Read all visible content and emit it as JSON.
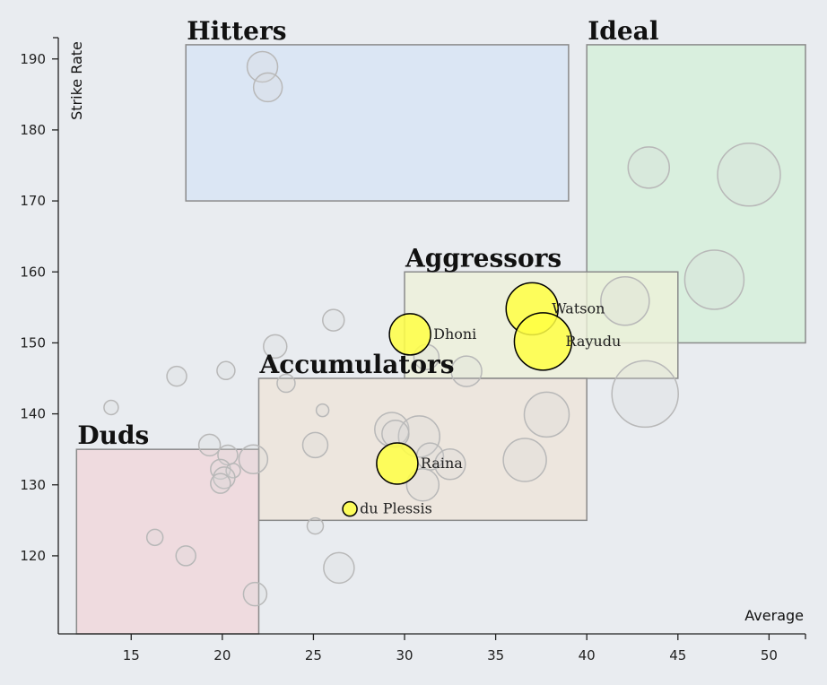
{
  "chart_data": {
    "type": "scatter",
    "xlabel": "Average",
    "ylabel": "Strike Rate",
    "xlim": [
      11,
      52
    ],
    "ylim": [
      109,
      193
    ],
    "xticks": [
      15,
      20,
      25,
      30,
      35,
      40,
      45,
      50
    ],
    "yticks": [
      120,
      130,
      140,
      150,
      160,
      170,
      180,
      190
    ],
    "zones": [
      {
        "name": "Hitters",
        "x": [
          18,
          39
        ],
        "y": [
          170,
          192
        ],
        "color": "#d5e4f5",
        "label_pos": "top-left"
      },
      {
        "name": "Ideal",
        "x": [
          40,
          52
        ],
        "y": [
          150,
          192
        ],
        "color": "#d3f0d8",
        "label_pos": "top-left"
      },
      {
        "name": "Aggressors",
        "x": [
          30,
          45
        ],
        "y": [
          145,
          160
        ],
        "color": "#edf2d8",
        "label_pos": "top-left"
      },
      {
        "name": "Accumulators",
        "x": [
          22,
          40
        ],
        "y": [
          125,
          145
        ],
        "color": "#ede4d8",
        "label_pos": "top-left"
      },
      {
        "name": "Duds",
        "x": [
          12,
          22
        ],
        "y": [
          109,
          135
        ],
        "color": "#f0d5da",
        "label_pos": "top-left"
      }
    ],
    "highlighted": [
      {
        "name": "Watson",
        "x": 37.0,
        "y": 154.8,
        "size": 29
      },
      {
        "name": "Rayudu",
        "x": 37.6,
        "y": 150.2,
        "size": 32
      },
      {
        "name": "Dhoni",
        "x": 30.3,
        "y": 151.2,
        "size": 23
      },
      {
        "name": "Raina",
        "x": 29.6,
        "y": 133.0,
        "size": 23
      },
      {
        "name": "du Plessis",
        "x": 27.0,
        "y": 126.6,
        "size": 8
      }
    ],
    "background_points": [
      {
        "x": 22.2,
        "y": 188.9,
        "size": 17
      },
      {
        "x": 22.5,
        "y": 186.0,
        "size": 16
      },
      {
        "x": 43.4,
        "y": 174.7,
        "size": 23
      },
      {
        "x": 48.9,
        "y": 173.7,
        "size": 35
      },
      {
        "x": 47.0,
        "y": 158.9,
        "size": 33
      },
      {
        "x": 42.1,
        "y": 155.9,
        "size": 27
      },
      {
        "x": 26.1,
        "y": 153.2,
        "size": 12
      },
      {
        "x": 22.9,
        "y": 149.5,
        "size": 13
      },
      {
        "x": 31.2,
        "y": 148.0,
        "size": 14
      },
      {
        "x": 17.5,
        "y": 145.3,
        "size": 11
      },
      {
        "x": 20.2,
        "y": 146.1,
        "size": 10
      },
      {
        "x": 23.5,
        "y": 144.3,
        "size": 10
      },
      {
        "x": 33.4,
        "y": 146.0,
        "size": 17
      },
      {
        "x": 43.2,
        "y": 142.8,
        "size": 37
      },
      {
        "x": 13.9,
        "y": 140.9,
        "size": 8
      },
      {
        "x": 25.5,
        "y": 140.5,
        "size": 7
      },
      {
        "x": 37.8,
        "y": 139.9,
        "size": 25
      },
      {
        "x": 29.3,
        "y": 137.8,
        "size": 19
      },
      {
        "x": 30.8,
        "y": 136.8,
        "size": 23
      },
      {
        "x": 29.5,
        "y": 137.2,
        "size": 15
      },
      {
        "x": 19.3,
        "y": 135.6,
        "size": 12
      },
      {
        "x": 25.1,
        "y": 135.6,
        "size": 14
      },
      {
        "x": 21.7,
        "y": 133.6,
        "size": 16
      },
      {
        "x": 20.3,
        "y": 134.2,
        "size": 11
      },
      {
        "x": 31.4,
        "y": 134.0,
        "size": 15
      },
      {
        "x": 32.5,
        "y": 132.9,
        "size": 17
      },
      {
        "x": 36.6,
        "y": 133.5,
        "size": 24
      },
      {
        "x": 19.9,
        "y": 132.2,
        "size": 11
      },
      {
        "x": 20.6,
        "y": 132.0,
        "size": 8
      },
      {
        "x": 20.1,
        "y": 131.0,
        "size": 12
      },
      {
        "x": 19.9,
        "y": 130.2,
        "size": 11
      },
      {
        "x": 31.0,
        "y": 130.0,
        "size": 18
      },
      {
        "x": 25.1,
        "y": 124.2,
        "size": 9
      },
      {
        "x": 16.3,
        "y": 122.6,
        "size": 9
      },
      {
        "x": 18.0,
        "y": 120.0,
        "size": 11
      },
      {
        "x": 26.4,
        "y": 118.3,
        "size": 17
      },
      {
        "x": 21.8,
        "y": 114.6,
        "size": 13
      }
    ],
    "colors": {
      "highlight_fill": "#ffff44",
      "highlight_stroke": "#000000",
      "background_stroke": "#b8b8b8",
      "zone_stroke": "#8a8a8a"
    },
    "grid": false,
    "legend": "none"
  }
}
